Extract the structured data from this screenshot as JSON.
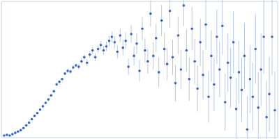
{
  "chart_data": {
    "type": "scatter",
    "series": [
      {
        "color": "#3b66bd",
        "marker": "circle",
        "x": [
          4,
          8,
          12,
          16,
          20,
          24,
          28,
          32,
          36,
          40,
          44,
          48,
          52,
          56,
          60,
          64,
          68,
          72,
          76,
          80,
          84,
          88,
          92,
          96,
          100,
          104,
          108,
          112,
          116,
          120,
          124,
          128,
          132,
          136,
          140,
          144,
          148,
          152,
          156,
          160,
          164,
          168,
          172,
          176,
          180,
          184,
          188,
          192,
          196,
          200,
          204,
          208,
          212,
          216,
          220,
          224,
          228,
          232,
          236,
          240,
          244,
          248,
          252,
          256,
          260,
          264,
          268,
          272,
          276,
          280,
          284,
          288,
          292,
          296,
          300,
          304,
          308,
          312,
          316,
          320,
          324,
          328,
          332,
          336,
          340,
          344,
          348,
          352,
          356,
          360,
          364,
          368,
          372,
          376,
          380,
          384,
          388,
          392,
          396
        ],
        "values": [
          3,
          4,
          3,
          5,
          7,
          9,
          11,
          14,
          18,
          22,
          27,
          32,
          36,
          41,
          46,
          51,
          56,
          62,
          68,
          78,
          82,
          86,
          94,
          98,
          97,
          103,
          106,
          104,
          112,
          118,
          110,
          122,
          128,
          118,
          130,
          136,
          128,
          134,
          142,
          148,
          140,
          126,
          150,
          132,
          142,
          104,
          152,
          120,
          138,
          98,
          160,
          128,
          112,
          182,
          120,
          146,
          96,
          172,
          130,
          108,
          186,
          118,
          80,
          150,
          100,
          194,
          128,
          86,
          160,
          112,
          72,
          140,
          92,
          166,
          60,
          120,
          78,
          148,
          100,
          164,
          52,
          110,
          88,
          140,
          42,
          96,
          70,
          120,
          12,
          86,
          60,
          130,
          44,
          100,
          148,
          30,
          64,
          148,
          40
        ],
        "error": [
          1,
          1,
          1,
          1,
          1,
          1,
          1,
          1,
          1,
          1,
          1,
          1,
          1,
          1,
          1,
          2,
          2,
          2,
          2,
          2,
          2,
          2,
          2,
          3,
          3,
          3,
          3,
          4,
          4,
          4,
          5,
          5,
          5,
          6,
          6,
          6,
          7,
          7,
          8,
          8,
          9,
          10,
          10,
          11,
          12,
          12,
          13,
          14,
          15,
          16,
          17,
          18,
          18,
          19,
          20,
          21,
          22,
          23,
          24,
          24,
          25,
          26,
          27,
          28,
          29,
          30,
          31,
          32,
          32,
          33,
          34,
          35,
          36,
          37,
          38,
          38,
          39,
          40,
          41,
          42,
          42,
          43,
          44,
          45,
          46,
          46,
          47,
          48,
          49,
          50,
          50,
          51,
          52,
          53,
          54,
          54,
          55,
          56,
          57
        ]
      }
    ],
    "xlim": [
      0,
      400
    ],
    "ylim": [
      0,
      200
    ],
    "xticks": [
      115
    ],
    "yticks": [
      100
    ],
    "grid": true,
    "tick_labels": false
  }
}
